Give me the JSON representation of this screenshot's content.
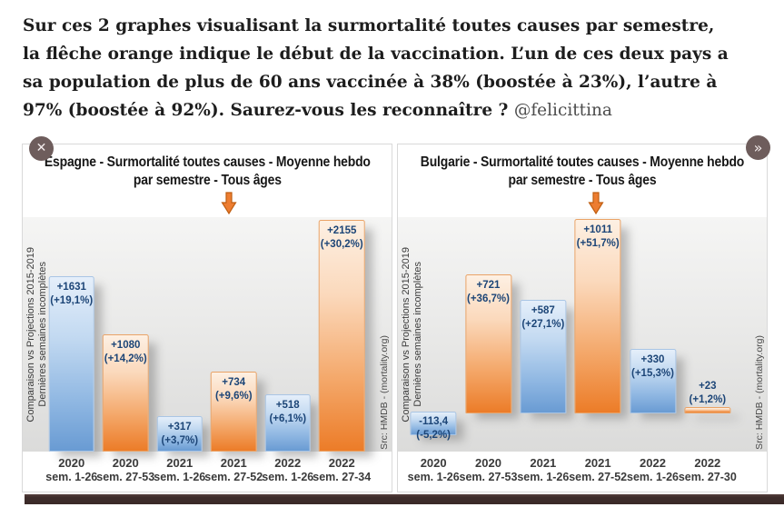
{
  "intro": {
    "text": "Sur ces 2 graphes visualisant la surmortalité toutes causes par semestre, la flêche orange indique le début de la vaccination. L’un de ces deux pays a sa population de plus de 60 ans vaccinée à 38% (boostée à 23%), l’autre à 97% (boostée à 92%). Saurez-vous les reconnaître ? ",
    "handle": "@felicittina"
  },
  "controls": {
    "close_label": "✕",
    "next_label": "»"
  },
  "colors": {
    "bar_blue": "#699bd3",
    "bar_orange": "#ed7d31",
    "value_label_navy": "#1c4577",
    "arrow_orange": "#ed7d31",
    "arrow_border": "#bf5d10",
    "button_bg": "#6e5d5c",
    "bottom_bar": "#3e2d2b",
    "plot_background": "#e8e8e7"
  },
  "chart_data": [
    {
      "type": "bar",
      "country": "Espagne",
      "title": "Espagne - Surmortalité toutes causes - Moyenne hebdo par semestre - Tous âges",
      "title_lines": [
        "Espagne - Surmortalité toutes causes - Moyenne hebdo",
        "par semestre - Tous âges"
      ],
      "categories": [
        {
          "year": "2020",
          "weeks": "sem. 1-26"
        },
        {
          "year": "2020",
          "weeks": "sem. 27-53"
        },
        {
          "year": "2021",
          "weeks": "sem. 1-26"
        },
        {
          "year": "2021",
          "weeks": "sem. 27-52"
        },
        {
          "year": "2022",
          "weeks": "sem. 1-26"
        },
        {
          "year": "2022",
          "weeks": "sem. 27-34"
        }
      ],
      "values": [
        1631,
        1080,
        317,
        734,
        518,
        2155
      ],
      "value_labels": [
        "+1631",
        "+1080",
        "+317",
        "+734",
        "+518",
        "+2155"
      ],
      "pct_labels": [
        "(+19,1%)",
        "(+14,2%)",
        "(+3,7%)",
        "(+9,6%)",
        "(+6,1%)",
        "(+30,2%)"
      ],
      "bar_styles": [
        "blue",
        "orange",
        "blue",
        "orange",
        "blue",
        "orange"
      ],
      "ylim": [
        0,
        2200
      ],
      "grid": false,
      "legend": false,
      "left_note_1": "Comparaison vs Projections 2015-2019",
      "left_note_2": "Dernières semaines incomplètes",
      "source": "Src: HMDB - (mortality.org)",
      "arrow_left_pct": 56
    },
    {
      "type": "bar",
      "country": "Bulgarie",
      "title": "Bulgarie - Surmortalité toutes causes - Moyenne hebdo par semestre - Tous âges",
      "title_lines": [
        "Bulgarie - Surmortalité toutes causes - Moyenne hebdo",
        "par semestre - Tous âges"
      ],
      "categories": [
        {
          "year": "2020",
          "weeks": "sem. 1-26"
        },
        {
          "year": "2020",
          "weeks": "sem. 27-53"
        },
        {
          "year": "2021",
          "weeks": "sem. 1-26"
        },
        {
          "year": "2021",
          "weeks": "sem. 27-52"
        },
        {
          "year": "2022",
          "weeks": "sem. 1-26"
        },
        {
          "year": "2022",
          "weeks": "sem. 27-30"
        }
      ],
      "values": [
        -113.4,
        721,
        587,
        1011,
        330,
        23
      ],
      "value_labels": [
        "-113,4",
        "+721",
        "+587",
        "+1011",
        "+330",
        "+23"
      ],
      "pct_labels": [
        "(-5,2%)",
        "(+36,7%)",
        "(+27,1%)",
        "(+51,7%)",
        "(+15,3%)",
        "(+1,2%)"
      ],
      "bar_styles": [
        "blue",
        "orange",
        "blue",
        "orange",
        "blue",
        "orange"
      ],
      "ylim": [
        -200,
        1030
      ],
      "grid": false,
      "legend": false,
      "left_note_1": "Comparaison vs Projections 2015-2019",
      "left_note_2": "Dernières semaines incomplètes",
      "source": "Src: HMDB - (mortality.org)",
      "arrow_left_pct": 53.6
    }
  ]
}
